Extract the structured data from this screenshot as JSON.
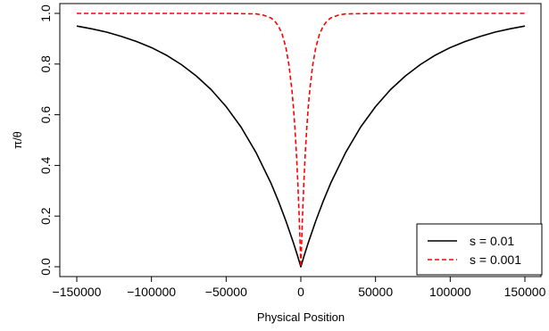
{
  "chart_data": {
    "type": "line",
    "xlabel": "Physical Position",
    "ylabel": "π/θ",
    "xlim": [
      -150000,
      150000
    ],
    "ylim": [
      0,
      1
    ],
    "x_ticks": [
      -150000,
      -100000,
      -50000,
      0,
      50000,
      100000,
      150000
    ],
    "x_tick_labels": [
      "−150000",
      "−100000",
      "−50000",
      "0",
      "50000",
      "100000",
      "150000"
    ],
    "y_ticks": [
      0,
      0.2,
      0.4,
      0.6,
      0.8,
      1.0
    ],
    "y_tick_labels": [
      "0.0",
      "0.2",
      "0.4",
      "0.6",
      "0.8",
      "1.0"
    ],
    "grid": false,
    "legend_position": "bottom-right",
    "series": [
      {
        "name": "s =  0.01",
        "color": "#000000",
        "dash": "solid",
        "x": [
          -150000,
          -140000,
          -130000,
          -120000,
          -110000,
          -100000,
          -90000,
          -80000,
          -70000,
          -60000,
          -50000,
          -40000,
          -30000,
          -20000,
          -15000,
          -10000,
          -5000,
          -2500,
          0,
          2500,
          5000,
          10000,
          15000,
          20000,
          30000,
          40000,
          50000,
          60000,
          70000,
          80000,
          90000,
          100000,
          110000,
          120000,
          130000,
          140000,
          150000
        ],
        "y": [
          0.95,
          0.939,
          0.926,
          0.909,
          0.889,
          0.865,
          0.835,
          0.798,
          0.753,
          0.699,
          0.632,
          0.551,
          0.451,
          0.33,
          0.259,
          0.181,
          0.095,
          0.049,
          0.0,
          0.049,
          0.095,
          0.181,
          0.259,
          0.33,
          0.451,
          0.551,
          0.632,
          0.699,
          0.753,
          0.798,
          0.835,
          0.865,
          0.889,
          0.909,
          0.926,
          0.939,
          0.95
        ]
      },
      {
        "name": "s =  0.001",
        "color": "#ff0000",
        "dash": "dashed",
        "x": [
          -150000,
          -100000,
          -50000,
          -30000,
          -25000,
          -20000,
          -17500,
          -15000,
          -12500,
          -10000,
          -8000,
          -6000,
          -5000,
          -4000,
          -3000,
          -2000,
          -1000,
          0,
          1000,
          2000,
          3000,
          4000,
          5000,
          6000,
          8000,
          10000,
          12500,
          15000,
          17500,
          20000,
          25000,
          30000,
          50000,
          100000,
          150000
        ],
        "y": [
          1.0,
          1.0,
          1.0,
          0.998,
          0.993,
          0.982,
          0.97,
          0.95,
          0.918,
          0.865,
          0.798,
          0.699,
          0.632,
          0.551,
          0.451,
          0.33,
          0.181,
          0.0,
          0.181,
          0.33,
          0.451,
          0.551,
          0.632,
          0.699,
          0.798,
          0.865,
          0.918,
          0.95,
          0.97,
          0.982,
          0.993,
          0.998,
          1.0,
          1.0,
          1.0
        ]
      }
    ]
  }
}
